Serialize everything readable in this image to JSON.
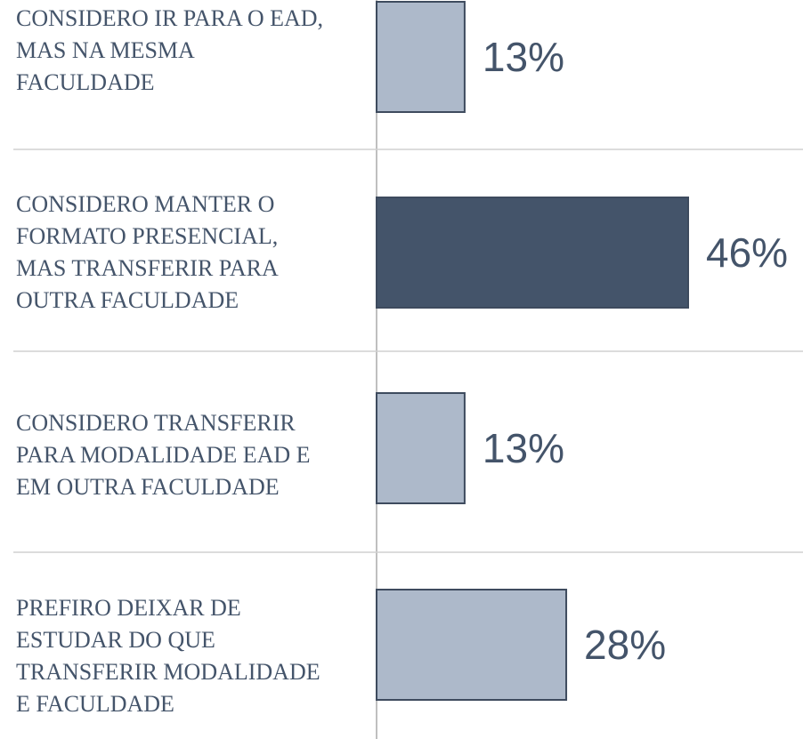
{
  "chart_data": {
    "type": "bar",
    "categories": [
      "CONSIDERO IR PARA O EAD, MAS NA MESMA FACULDADE",
      "CONSIDERO MANTER O FORMATO PRESENCIAL, MAS TRANSFERIR PARA OUTRA FACULDADE",
      "CONSIDERO TRANSFERIR PARA MODALIDADE EAD E EM OUTRA FACULDADE",
      "PREFIRO DEIXAR DE ESTUDAR DO QUE TRANSFERIR MODALIDADE E FACULDADE"
    ],
    "values": [
      13,
      46,
      13,
      28
    ],
    "value_labels": [
      "13%",
      "46%",
      "13%",
      "28%"
    ],
    "colors": [
      "#adb9ca",
      "#44546a",
      "#adb9ca",
      "#adb9ca"
    ]
  }
}
